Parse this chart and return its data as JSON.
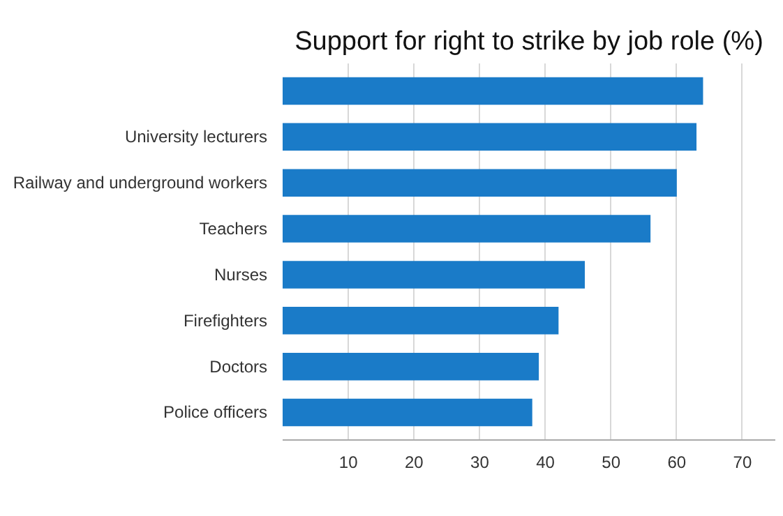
{
  "chart_data": {
    "type": "bar",
    "orientation": "horizontal",
    "title": "Support for right to strike by job role (%)",
    "categories": [
      null,
      "University lecturers",
      "Railway and underground workers",
      "Teachers",
      "Nurses",
      "Firefighters",
      "Doctors",
      "Police officers"
    ],
    "values": [
      64,
      63,
      60,
      56,
      46,
      42,
      39,
      38
    ],
    "color": "#1a7bc8",
    "xlim": [
      0,
      75
    ],
    "xticks": [
      10,
      20,
      30,
      40,
      50,
      60,
      70
    ],
    "grid": "x"
  }
}
